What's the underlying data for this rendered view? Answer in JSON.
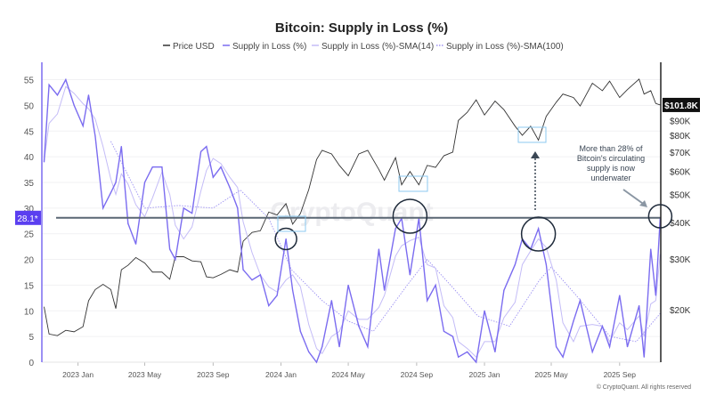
{
  "chart_data": {
    "type": "line",
    "title": "Bitcoin: Supply in Loss (%)",
    "legend": [
      {
        "name": "Price USD",
        "color": "#333333",
        "style": "solid"
      },
      {
        "name": "Supply in Loss (%)",
        "color": "#7b6cf0",
        "style": "solid"
      },
      {
        "name": "Supply in Loss (%)-SMA(14)",
        "color": "#c4bcf7",
        "style": "solid"
      },
      {
        "name": "Supply in Loss (%)-SMA(100)",
        "color": "#9d92f2",
        "style": "dotted"
      }
    ],
    "legend_position": "top-center",
    "x_range": [
      "2022-10-28",
      "2025-11-14"
    ],
    "x_ticks": [
      {
        "date": "2023-01-01",
        "label": "2023 Jan"
      },
      {
        "date": "2023-05-01",
        "label": "2023 May"
      },
      {
        "date": "2023-09-01",
        "label": "2023 Sep"
      },
      {
        "date": "2024-01-01",
        "label": "2024 Jan"
      },
      {
        "date": "2024-05-01",
        "label": "2024 May"
      },
      {
        "date": "2024-09-01",
        "label": "2024 Sep"
      },
      {
        "date": "2025-01-01",
        "label": "2025 Jan"
      },
      {
        "date": "2025-05-01",
        "label": "2025 May"
      },
      {
        "date": "2025-09-01",
        "label": "2025 Sep"
      }
    ],
    "y_left": {
      "label": "Supply in Loss (%)",
      "range": [
        0,
        57
      ],
      "ticks": [
        0,
        5,
        10,
        15,
        20,
        25,
        30,
        35,
        40,
        45,
        50,
        55
      ]
    },
    "y_right": {
      "label": "Price USD",
      "scale": "log",
      "range_k": [
        13.2,
        135
      ],
      "ticks": [
        {
          "v": 20,
          "label": "$20K"
        },
        {
          "v": 30,
          "label": "$30K"
        },
        {
          "v": 40,
          "label": "$40K"
        },
        {
          "v": 50,
          "label": "$50K"
        },
        {
          "v": 60,
          "label": "$60K"
        },
        {
          "v": 70,
          "label": "$70K"
        },
        {
          "v": 80,
          "label": "$80K"
        },
        {
          "v": 90,
          "label": "$90K"
        }
      ]
    },
    "grid": true,
    "dates": [
      "2022-11-01",
      "2022-11-10",
      "2022-11-25",
      "2022-12-10",
      "2022-12-25",
      "2023-01-10",
      "2023-01-20",
      "2023-02-01",
      "2023-02-15",
      "2023-03-01",
      "2023-03-10",
      "2023-03-20",
      "2023-04-01",
      "2023-04-15",
      "2023-05-01",
      "2023-05-15",
      "2023-06-01",
      "2023-06-15",
      "2023-06-25",
      "2023-07-10",
      "2023-07-25",
      "2023-08-10",
      "2023-08-20",
      "2023-09-01",
      "2023-09-15",
      "2023-10-01",
      "2023-10-15",
      "2023-10-25",
      "2023-11-10",
      "2023-11-25",
      "2023-12-10",
      "2023-12-25",
      "2024-01-10",
      "2024-01-22",
      "2024-02-05",
      "2024-02-20",
      "2024-03-05",
      "2024-03-15",
      "2024-04-01",
      "2024-04-15",
      "2024-05-01",
      "2024-05-20",
      "2024-06-05",
      "2024-06-25",
      "2024-07-05",
      "2024-07-25",
      "2024-08-05",
      "2024-08-20",
      "2024-09-05",
      "2024-09-20",
      "2024-10-05",
      "2024-10-20",
      "2024-11-05",
      "2024-11-15",
      "2024-12-01",
      "2024-12-17",
      "2025-01-01",
      "2025-01-20",
      "2025-02-05",
      "2025-02-25",
      "2025-03-10",
      "2025-03-25",
      "2025-04-08",
      "2025-04-22",
      "2025-05-10",
      "2025-05-22",
      "2025-06-10",
      "2025-06-22",
      "2025-07-14",
      "2025-08-01",
      "2025-08-14",
      "2025-09-01",
      "2025-09-15",
      "2025-10-06",
      "2025-10-15",
      "2025-10-27",
      "2025-11-05",
      "2025-11-13"
    ],
    "supply_in_loss": [
      39,
      54,
      52,
      55,
      50,
      46,
      52,
      44,
      30,
      33,
      35,
      42,
      27,
      23,
      35,
      38,
      38,
      22,
      20,
      30,
      29,
      41,
      42,
      36,
      38,
      34,
      30,
      18,
      16,
      17,
      11,
      13,
      24,
      14,
      6,
      2,
      0,
      3,
      12,
      3,
      15,
      7,
      3,
      22,
      14,
      26,
      28,
      17,
      28,
      12,
      15,
      6,
      5,
      1,
      2,
      0,
      10,
      2,
      14,
      19,
      24,
      22,
      26,
      19,
      3,
      1,
      8,
      12,
      2,
      7,
      3,
      13,
      3,
      11,
      1,
      22,
      13,
      28.1
    ],
    "price_usd_k": [
      20.5,
      16.5,
      16.3,
      17.0,
      16.8,
      17.5,
      21.5,
      23.5,
      24.5,
      23.5,
      20.2,
      27.5,
      28.5,
      30.3,
      29,
      27,
      27,
      25.5,
      30.5,
      30.5,
      29.5,
      29.3,
      26,
      25.8,
      26.5,
      27.5,
      27,
      34.5,
      37,
      37.5,
      43.5,
      42.5,
      46.5,
      39.5,
      43,
      52,
      66,
      71,
      69,
      63,
      58,
      69,
      71,
      61,
      56,
      67,
      54,
      60,
      54,
      63,
      62,
      68,
      70,
      90,
      96,
      106,
      94,
      105,
      98,
      86,
      80,
      86,
      77,
      93,
      104,
      111,
      108,
      101,
      121,
      114,
      123,
      108,
      115,
      125,
      111,
      114,
      103,
      101.8
    ],
    "sma100": {
      "dates": [
        "2023-03-01",
        "2023-05-01",
        "2023-07-01",
        "2023-09-01",
        "2023-10-20",
        "2023-12-10",
        "2024-01-20",
        "2024-03-15",
        "2024-05-01",
        "2024-06-15",
        "2024-08-15",
        "2024-09-20",
        "2024-11-01",
        "2024-12-20",
        "2025-02-15",
        "2025-04-10",
        "2025-05-01",
        "2025-06-15",
        "2025-08-15",
        "2025-10-01",
        "2025-11-13"
      ],
      "values": [
        43,
        30,
        30.5,
        30,
        33.5,
        28,
        18,
        12,
        8,
        6,
        15,
        20,
        15,
        9,
        7,
        16,
        18.5,
        13,
        5,
        4,
        9.5
      ]
    },
    "threshold": {
      "value": 28.1,
      "label": "28.1*",
      "color": "#5a6673"
    },
    "last_price_label": "$101.8K",
    "highlighted_dates": [
      "2024-01-10",
      "2024-08-20",
      "2025-04-08",
      "2025-11-13"
    ],
    "annotation": "More than 28% of Bitcoin's circulating supply is now underwater",
    "watermark": "CryptoQuant",
    "copyright": "© CryptoQuant. All rights reserved"
  }
}
